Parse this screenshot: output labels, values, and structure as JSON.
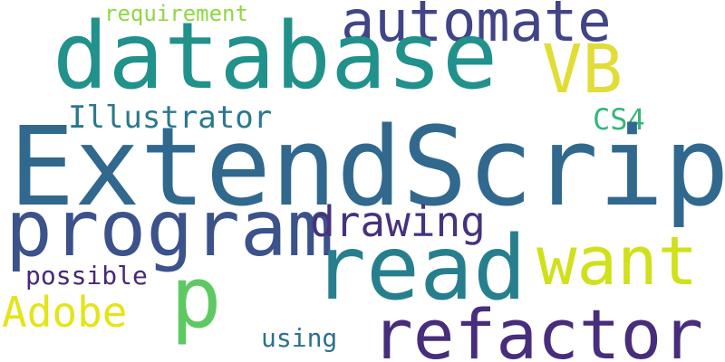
{
  "words": {
    "requirement": {
      "text": "requirement",
      "color": "#90d743"
    },
    "automate": {
      "text": "automate",
      "color": "#414487"
    },
    "database": {
      "text": "database",
      "color": "#21918c"
    },
    "vb": {
      "text": "VB",
      "color": "#e1dd37"
    },
    "illustrator": {
      "text": "Illustrator",
      "color": "#2a788e"
    },
    "cs4": {
      "text": "CS4",
      "color": "#35b779"
    },
    "extendscript": {
      "text": "ExtendScript",
      "color": "#31688e"
    },
    "program": {
      "text": "program",
      "color": "#3b528b"
    },
    "drawing": {
      "text": "drawing",
      "color": "#46327e"
    },
    "read": {
      "text": "read",
      "color": "#277f8e"
    },
    "want": {
      "text": "want",
      "color": "#d0e11c"
    },
    "p": {
      "text": "p",
      "color": "#5ec962"
    },
    "possible": {
      "text": "possible",
      "color": "#482878"
    },
    "adobe": {
      "text": "Adobe",
      "color": "#e5e419"
    },
    "refactor": {
      "text": "refactor",
      "color": "#472d7b"
    },
    "using": {
      "text": "using",
      "color": "#2c728e"
    }
  }
}
